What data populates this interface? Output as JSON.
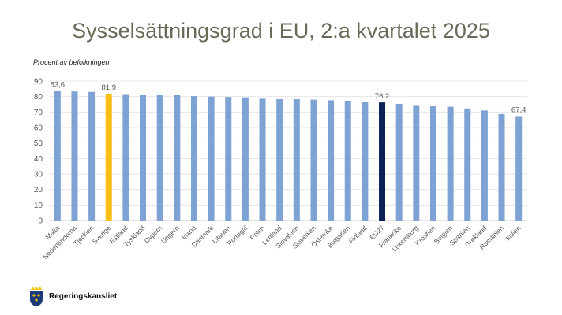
{
  "chart_data": {
    "type": "bar",
    "title": "Sysselsättningsgrad i EU, 2:a kvartalet 2025",
    "ylabel": "Procent av befolkningen",
    "xlabel": "",
    "ylim": [
      0,
      90
    ],
    "yticks": [
      0,
      10,
      20,
      30,
      40,
      50,
      60,
      70,
      80,
      90
    ],
    "grid": true,
    "categories": [
      "Malta",
      "Nederländerna",
      "Tjeckien",
      "Sverige",
      "Estland",
      "Tyskland",
      "Cypern",
      "Ungern",
      "Irland",
      "Danmark",
      "Litauen",
      "Portugal",
      "Polen",
      "Lettland",
      "Slovakien",
      "Slovenien",
      "Österrike",
      "Bulgarien",
      "Finland",
      "EU27",
      "Frankrike",
      "Luxemburg",
      "Kroatien",
      "Belgien",
      "Spanien",
      "Grekland",
      "Rumänien",
      "Italien"
    ],
    "values": [
      83.6,
      83.3,
      83.0,
      81.9,
      81.6,
      81.3,
      81.0,
      80.9,
      80.3,
      80.0,
      79.8,
      79.5,
      78.6,
      78.3,
      78.3,
      78.0,
      77.6,
      77.3,
      76.8,
      76.2,
      75.3,
      74.5,
      73.7,
      73.4,
      72.3,
      71.0,
      68.7,
      67.4
    ],
    "data_labels": {
      "Malta": "83,6",
      "Sverige": "81,9",
      "EU27": "76,2",
      "Italien": "67,4"
    },
    "colors": {
      "default": "#7fa2d4",
      "Sverige": "#fbbf14",
      "EU27": "#0b2158"
    }
  },
  "logo": {
    "text": "Regeringskansliet"
  }
}
